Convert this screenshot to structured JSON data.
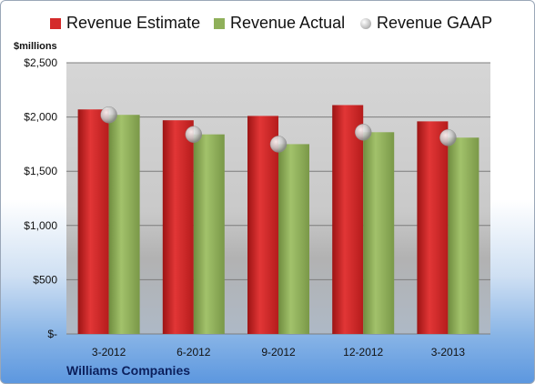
{
  "legend": [
    {
      "label": "Revenue Estimate",
      "color": "#d42a2a",
      "kind": "square-icon"
    },
    {
      "label": "Revenue Actual",
      "color": "#8fb05a",
      "kind": "square-icon"
    },
    {
      "label": "Revenue GAAP",
      "color": "#c4c4c4",
      "kind": "circle-icon"
    }
  ],
  "unit_label": "$millions",
  "company": "Williams Companies",
  "chart_data": {
    "type": "bar",
    "title": "",
    "xlabel": "",
    "ylabel": "$millions",
    "categories": [
      "3-2012",
      "6-2012",
      "9-2012",
      "12-2012",
      "3-2013"
    ],
    "ylim": [
      0,
      2500
    ],
    "yticks": [
      0,
      500,
      1000,
      1500,
      2000,
      2500
    ],
    "ytick_labels": [
      "$-",
      "$500",
      "$1,000",
      "$1,500",
      "$2,000",
      "$2,500"
    ],
    "grid": true,
    "legend_position": "top",
    "series": [
      {
        "name": "Revenue Estimate",
        "type": "bar",
        "color": "#d42a2a",
        "values": [
          2070,
          1970,
          2010,
          2110,
          1960
        ]
      },
      {
        "name": "Revenue Actual",
        "type": "bar",
        "color": "#8fb05a",
        "values": [
          2020,
          1840,
          1750,
          1860,
          1810
        ]
      },
      {
        "name": "Revenue GAAP",
        "type": "marker",
        "color": "#c4c4c4",
        "values": [
          2020,
          1840,
          1750,
          1860,
          1810
        ]
      }
    ]
  }
}
